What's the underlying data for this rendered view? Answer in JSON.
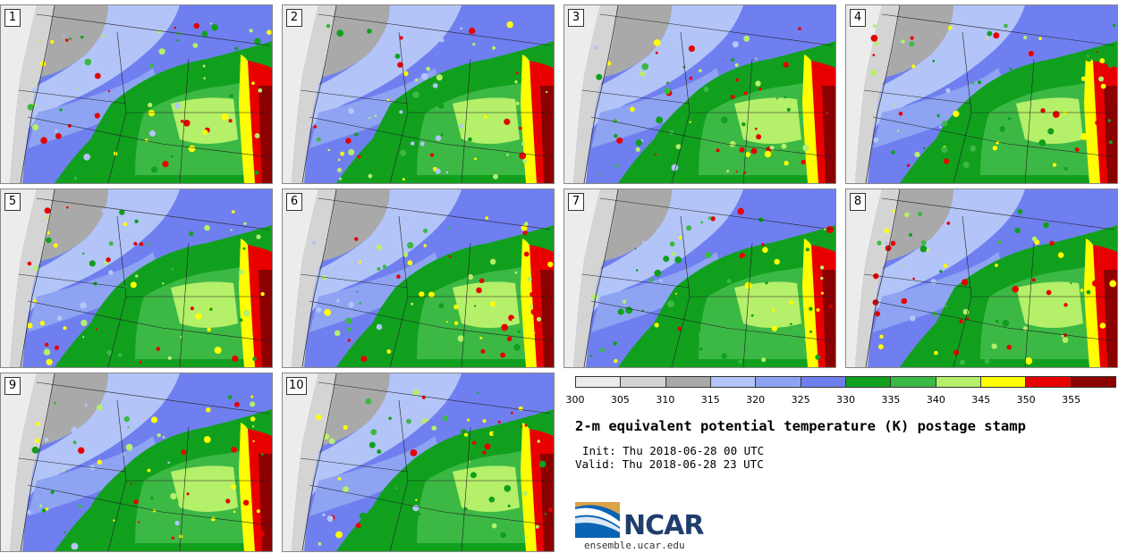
{
  "panels": [
    {
      "label": "1"
    },
    {
      "label": "2"
    },
    {
      "label": "3"
    },
    {
      "label": "4"
    },
    {
      "label": "5"
    },
    {
      "label": "6"
    },
    {
      "label": "7"
    },
    {
      "label": "8"
    },
    {
      "label": "9"
    },
    {
      "label": "10"
    }
  ],
  "colorbar": {
    "ticks": [
      "300",
      "305",
      "310",
      "315",
      "320",
      "325",
      "330",
      "335",
      "340",
      "345",
      "350",
      "355"
    ],
    "colors": [
      "#ececec",
      "#d4d4d4",
      "#a9a9a9",
      "#b3c4f8",
      "#8ea3f2",
      "#6f7ff0",
      "#10a01e",
      "#3cb845",
      "#b4f069",
      "#ffff00",
      "#e80000",
      "#8b0000"
    ]
  },
  "title": "2-m equivalent potential temperature (K) postage stamp",
  "init": "Init: Thu 2018-06-28 00 UTC",
  "valid": "Valid: Thu 2018-06-28 23 UTC",
  "logo": {
    "name": "NCAR",
    "url": "ensemble.ucar.edu"
  }
}
